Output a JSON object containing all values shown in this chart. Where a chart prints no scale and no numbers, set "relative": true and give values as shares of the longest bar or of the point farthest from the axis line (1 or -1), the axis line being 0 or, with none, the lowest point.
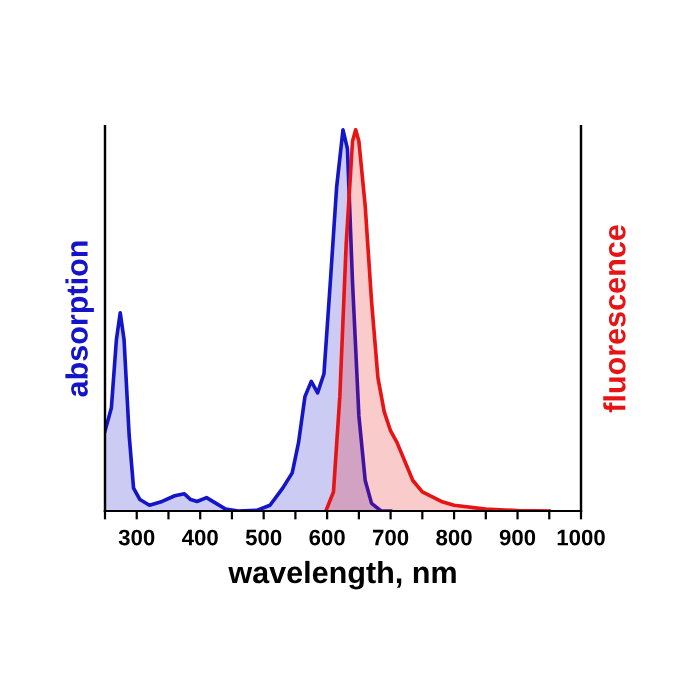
{
  "chart_data": {
    "type": "area",
    "relative": true,
    "xlabel": "wavelength, nm",
    "ylabel": "absorption",
    "y2label": "fluorescence",
    "xlim": [
      250,
      1000
    ],
    "xticks": [
      {
        "value": 250,
        "label": null
      },
      300,
      {
        "value": 350,
        "label": null
      },
      400,
      {
        "value": 450,
        "label": null
      },
      500,
      {
        "value": 550,
        "label": null
      },
      600,
      {
        "value": 650,
        "label": null
      },
      700,
      {
        "value": 750,
        "label": null
      },
      800,
      {
        "value": 850,
        "label": null
      },
      900,
      {
        "value": 950,
        "label": null
      },
      1000
    ],
    "grid": false,
    "legend": false,
    "series": [
      {
        "color": "#1414c8",
        "x": [
          250,
          260,
          268,
          274,
          280,
          288,
          295,
          305,
          320,
          340,
          360,
          375,
          385,
          395,
          410,
          425,
          440,
          460,
          490,
          510,
          530,
          545,
          555,
          565,
          575,
          585,
          595,
          605,
          615,
          625,
          632,
          640,
          650,
          660,
          670,
          685,
          700
        ],
        "values": [
          0.21,
          0.27,
          0.45,
          0.52,
          0.45,
          0.2,
          0.06,
          0.03,
          0.015,
          0.025,
          0.04,
          0.045,
          0.03,
          0.025,
          0.035,
          0.02,
          0.005,
          0,
          0.002,
          0.015,
          0.06,
          0.1,
          0.18,
          0.3,
          0.34,
          0.31,
          0.36,
          0.6,
          0.85,
          1.0,
          0.95,
          0.6,
          0.25,
          0.08,
          0.02,
          0,
          0
        ]
      },
      {
        "color": "#e61414",
        "axis": "y2",
        "x": [
          598,
          610,
          620,
          630,
          640,
          645,
          650,
          660,
          670,
          680,
          690,
          700,
          710,
          720,
          735,
          750,
          780,
          800,
          850,
          900,
          950
        ],
        "values": [
          0,
          0.05,
          0.3,
          0.7,
          0.97,
          1.0,
          0.97,
          0.8,
          0.55,
          0.35,
          0.26,
          0.21,
          0.18,
          0.14,
          0.08,
          0.05,
          0.025,
          0.015,
          0.005,
          0.001,
          0
        ]
      }
    ]
  }
}
